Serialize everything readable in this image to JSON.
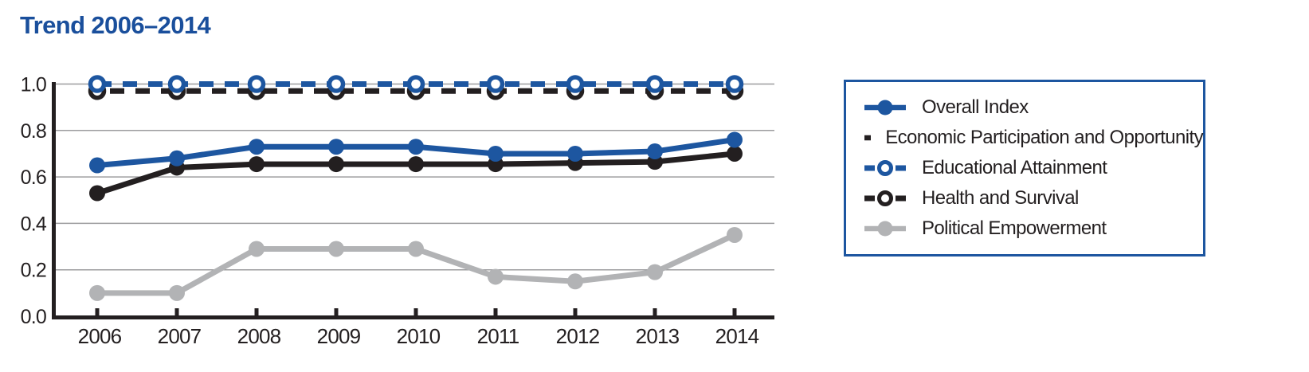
{
  "title": "Trend 2006–2014",
  "colors": {
    "title_blue": "#1a4f9c",
    "line_blue": "#1d56a0",
    "line_black": "#231f20",
    "line_gray": "#b2b3b5",
    "gridline": "#9c9c9e",
    "axis": "#231f20",
    "tick_text": "#231f20",
    "legend_border": "#1d56a0"
  },
  "chart_data": {
    "type": "line",
    "title": "Trend 2006–2014",
    "x": [
      2006,
      2007,
      2008,
      2009,
      2010,
      2011,
      2012,
      2013,
      2014
    ],
    "series": [
      {
        "name": "Overall Index",
        "color": "#1d56a0",
        "style": "solid",
        "marker": "filled",
        "values": [
          0.65,
          0.68,
          0.73,
          0.73,
          0.73,
          0.7,
          0.7,
          0.71,
          0.76
        ]
      },
      {
        "name": "Economic Participation and Opportunity",
        "color": "#231f20",
        "style": "solid",
        "marker": "filled",
        "values": [
          0.53,
          0.64,
          0.655,
          0.655,
          0.655,
          0.655,
          0.66,
          0.665,
          0.7
        ]
      },
      {
        "name": "Educational Attainment",
        "color": "#1d56a0",
        "style": "dashed",
        "marker": "open",
        "values": [
          1.0,
          1.0,
          1.0,
          1.0,
          1.0,
          1.0,
          1.0,
          1.0,
          1.0
        ]
      },
      {
        "name": "Health and Survival",
        "color": "#231f20",
        "style": "dashed",
        "marker": "open",
        "values": [
          0.97,
          0.97,
          0.97,
          0.97,
          0.97,
          0.97,
          0.97,
          0.97,
          0.97
        ]
      },
      {
        "name": "Political Empowerment",
        "color": "#b2b3b5",
        "style": "solid",
        "marker": "filled",
        "values": [
          0.1,
          0.1,
          0.29,
          0.29,
          0.29,
          0.17,
          0.15,
          0.19,
          0.35
        ]
      }
    ],
    "xlabel": "",
    "ylabel": "",
    "ylim": [
      0.0,
      1.0
    ],
    "yticks": [
      "1.0",
      "0.8",
      "0.6",
      "0.4",
      "0.2",
      "0.0"
    ],
    "grid": true,
    "legend_position": "right"
  }
}
